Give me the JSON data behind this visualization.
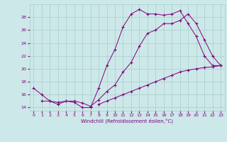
{
  "title": "",
  "xlabel": "Windchill (Refroidissement éolien,°C)",
  "background_color": "#cce8e8",
  "line_color": "#800080",
  "grid_color": "#aacccc",
  "xlim": [
    -0.5,
    23.5
  ],
  "ylim": [
    13.5,
    30
  ],
  "yticks": [
    14,
    16,
    18,
    20,
    22,
    24,
    26,
    28
  ],
  "xticks": [
    0,
    1,
    2,
    3,
    4,
    5,
    6,
    7,
    8,
    9,
    10,
    11,
    12,
    13,
    14,
    15,
    16,
    17,
    18,
    19,
    20,
    21,
    22,
    23
  ],
  "series": [
    {
      "x": [
        0,
        1,
        2,
        3,
        4,
        5,
        6,
        7,
        8,
        9,
        10,
        11,
        12,
        13,
        14,
        15,
        16,
        17,
        18,
        19,
        20,
        21,
        22,
        23
      ],
      "y": [
        17,
        16,
        15,
        14.5,
        15,
        14.8,
        14,
        14,
        17,
        20.5,
        23,
        26.5,
        28.5,
        29.2,
        28.5,
        28.5,
        28.3,
        28.5,
        29,
        27,
        25,
        22,
        20.5,
        20.5
      ]
    },
    {
      "x": [
        1,
        2,
        3,
        4,
        5,
        6,
        7,
        8,
        9,
        10,
        11,
        12,
        13,
        14,
        15,
        16,
        17,
        18,
        19,
        20,
        21,
        22,
        23
      ],
      "y": [
        15,
        15,
        14.8,
        15,
        15,
        14.7,
        14.2,
        15.2,
        16.5,
        17.5,
        19.5,
        21,
        23.5,
        25.5,
        26,
        27,
        27,
        27.5,
        28.5,
        27,
        24.5,
        22,
        20.5
      ]
    },
    {
      "x": [
        8,
        9,
        10,
        11,
        12,
        13,
        14,
        15,
        16,
        17,
        18,
        19,
        20,
        21,
        22,
        23
      ],
      "y": [
        14.5,
        15,
        15.5,
        16,
        16.5,
        17,
        17.5,
        18,
        18.5,
        19,
        19.5,
        19.8,
        20,
        20.2,
        20.3,
        20.5
      ]
    }
  ]
}
